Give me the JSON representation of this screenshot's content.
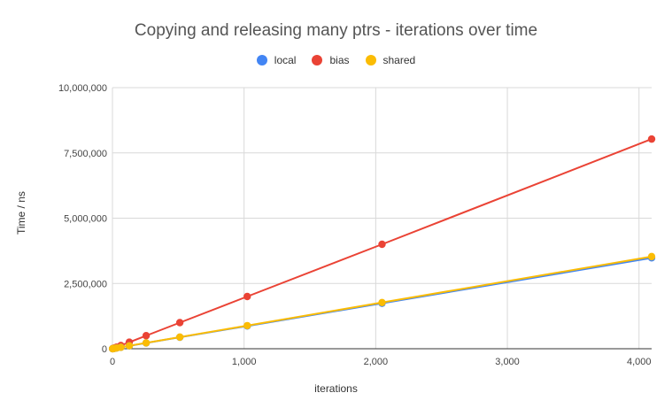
{
  "chart_data": {
    "type": "line",
    "title": "Copying and releasing many ptrs - iterations over time",
    "xlabel": "iterations",
    "ylabel": "Time / ns",
    "xlim": [
      0,
      4096
    ],
    "ylim": [
      0,
      10000000
    ],
    "x_ticks": [
      0,
      1000,
      2000,
      3000,
      4000
    ],
    "x_tick_labels": [
      "0",
      "1,000",
      "2,000",
      "3,000",
      "4,000"
    ],
    "y_ticks": [
      0,
      2500000,
      5000000,
      7500000,
      10000000
    ],
    "y_tick_labels": [
      "0",
      "2,500,000",
      "5,000,000",
      "7,500,000",
      "10,000,000"
    ],
    "grid": true,
    "legend_position": "top",
    "x": [
      1,
      2,
      4,
      8,
      16,
      32,
      64,
      128,
      256,
      512,
      1024,
      2048,
      4096
    ],
    "series": [
      {
        "name": "local",
        "color": "#4285F4",
        "values": [
          860,
          1720,
          3440,
          6880,
          13760,
          27500,
          55000,
          110000,
          220000,
          440000,
          870000,
          1740000,
          3480000
        ]
      },
      {
        "name": "bias",
        "color": "#EA4335",
        "values": [
          1950,
          3900,
          7800,
          15600,
          31200,
          62500,
          125000,
          250000,
          500000,
          1000000,
          2000000,
          4000000,
          8030000
        ]
      },
      {
        "name": "shared",
        "color": "#FBBC04",
        "values": [
          880,
          1760,
          3520,
          7040,
          14080,
          28000,
          56000,
          112000,
          224000,
          445000,
          885000,
          1770000,
          3530000
        ]
      }
    ]
  }
}
